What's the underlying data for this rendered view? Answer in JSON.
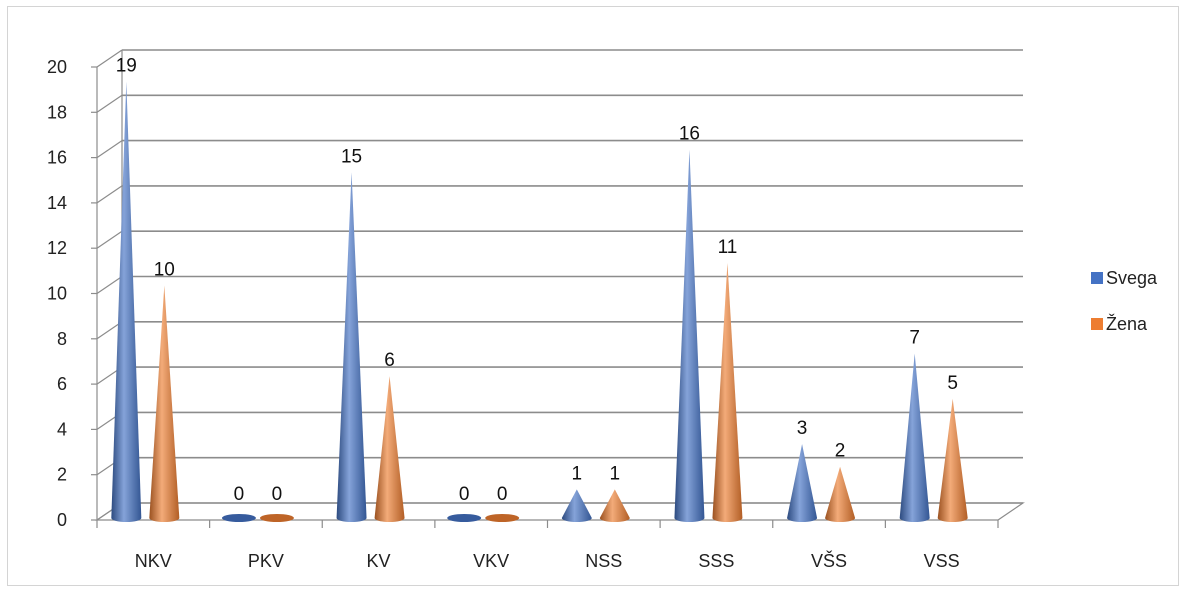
{
  "chart_data": {
    "type": "bar",
    "style": "3d-cone",
    "categories": [
      "NKV",
      "PKV",
      "KV",
      "VKV",
      "NSS",
      "SSS",
      "VŠS",
      "VSS"
    ],
    "series": [
      {
        "name": "Svega",
        "color": "#4472C4",
        "values": [
          19,
          0,
          15,
          0,
          1,
          16,
          3,
          7
        ]
      },
      {
        "name": "Žena",
        "color": "#ED7D31",
        "values": [
          10,
          0,
          6,
          0,
          1,
          11,
          2,
          5
        ]
      }
    ],
    "ylim": [
      0,
      20
    ],
    "yticks": [
      0,
      2,
      4,
      6,
      8,
      10,
      12,
      14,
      16,
      18,
      20
    ],
    "grid": true,
    "legend": "right",
    "data_labels": true
  }
}
